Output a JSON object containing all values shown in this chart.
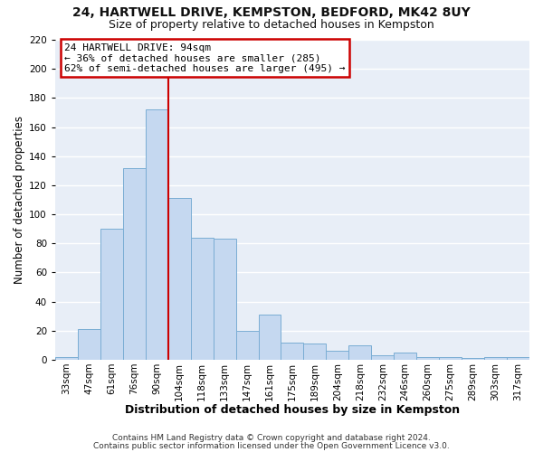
{
  "title": "24, HARTWELL DRIVE, KEMPSTON, BEDFORD, MK42 8UY",
  "subtitle": "Size of property relative to detached houses in Kempston",
  "xlabel": "Distribution of detached houses by size in Kempston",
  "ylabel": "Number of detached properties",
  "bar_labels": [
    "33sqm",
    "47sqm",
    "61sqm",
    "76sqm",
    "90sqm",
    "104sqm",
    "118sqm",
    "133sqm",
    "147sqm",
    "161sqm",
    "175sqm",
    "189sqm",
    "204sqm",
    "218sqm",
    "232sqm",
    "246sqm",
    "260sqm",
    "275sqm",
    "289sqm",
    "303sqm",
    "317sqm"
  ],
  "bar_values": [
    2,
    21,
    90,
    132,
    172,
    111,
    84,
    83,
    20,
    31,
    12,
    11,
    6,
    10,
    3,
    5,
    2,
    2,
    1,
    2,
    2
  ],
  "bar_color": "#c5d8f0",
  "bar_edge_color": "#7aadd4",
  "ylim": [
    0,
    220
  ],
  "yticks": [
    0,
    20,
    40,
    60,
    80,
    100,
    120,
    140,
    160,
    180,
    200,
    220
  ],
  "vline_x_idx": 4,
  "vline_color": "#cc0000",
  "annotation_title": "24 HARTWELL DRIVE: 94sqm",
  "annotation_line1": "← 36% of detached houses are smaller (285)",
  "annotation_line2": "62% of semi-detached houses are larger (495) →",
  "annotation_box_color": "#cc0000",
  "footer_line1": "Contains HM Land Registry data © Crown copyright and database right 2024.",
  "footer_line2": "Contains public sector information licensed under the Open Government Licence v3.0.",
  "plot_bg_color": "#e8eef7",
  "fig_bg_color": "#ffffff",
  "grid_color": "#ffffff",
  "title_fontsize": 10,
  "subtitle_fontsize": 9,
  "xlabel_fontsize": 9,
  "ylabel_fontsize": 8.5,
  "tick_fontsize": 7.5,
  "annotation_fontsize": 8,
  "footer_fontsize": 6.5
}
